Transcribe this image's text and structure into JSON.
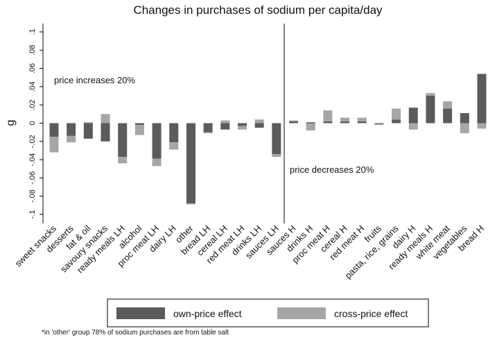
{
  "chart_data": {
    "type": "bar",
    "stacked": true,
    "title": "Changes in purchases of sodium per capita/day",
    "y_label": "g",
    "annotations": [
      "price increases 20%",
      "price decreases 20%"
    ],
    "footnote": "*in 'other' group 78% of sodium purchases are from table salt",
    "categories": [
      "sweet snacks",
      "desserts",
      "fat & oil",
      "savoury snacks",
      "ready meals LH",
      "alcohol",
      "proc meat LH",
      "dairy LH",
      "other",
      "bread LH",
      "cereal LH",
      "red meat LH",
      "drinks LH",
      "sauces LH",
      "sauces H",
      "drinks H",
      "proc meat H",
      "cereal H",
      "red meat H",
      "fruits",
      "pasta, rice, grains",
      "dairy H",
      "ready meals H",
      "white meat",
      "vegetables",
      "bread H"
    ],
    "series": [
      {
        "name": "own-price effect",
        "color": "#5b5b5b",
        "values": [
          -0.015,
          -0.014,
          -0.017,
          -0.02,
          -0.037,
          -0.002,
          -0.039,
          -0.021,
          -0.088,
          -0.01,
          -0.007,
          -0.003,
          -0.005,
          -0.034,
          0.002,
          0.001,
          0.002,
          0.002,
          0.002,
          -0.001,
          0.004,
          0.017,
          0.03,
          0.016,
          0.011,
          0.054
        ]
      },
      {
        "name": "cross-price effect",
        "color": "#a6a6a6",
        "values": [
          -0.017,
          -0.007,
          0.001,
          0.01,
          -0.007,
          -0.011,
          -0.008,
          -0.008,
          -0.001,
          -0.001,
          0.003,
          -0.004,
          0.004,
          -0.003,
          0.001,
          -0.008,
          0.012,
          0.004,
          0.004,
          -0.001,
          0.012,
          -0.007,
          0.003,
          0.008,
          -0.011,
          -0.006
        ]
      }
    ],
    "ylim": [
      -0.1,
      0.1
    ],
    "yticks": [
      {
        "value": -0.1,
        "label": "-.1"
      },
      {
        "value": -0.08,
        "label": "-.08"
      },
      {
        "value": -0.06,
        "label": "-.06"
      },
      {
        "value": -0.04,
        "label": "-.04"
      },
      {
        "value": -0.02,
        "label": "-.02"
      },
      0,
      {
        "value": 0.02,
        "label": ".02"
      },
      {
        "value": 0.04,
        "label": ".04"
      },
      {
        "value": 0.06,
        "label": ".06"
      },
      {
        "value": 0.08,
        "label": ".08"
      },
      {
        "value": 0.1,
        "label": ".1"
      }
    ],
    "legend": "bottom"
  }
}
